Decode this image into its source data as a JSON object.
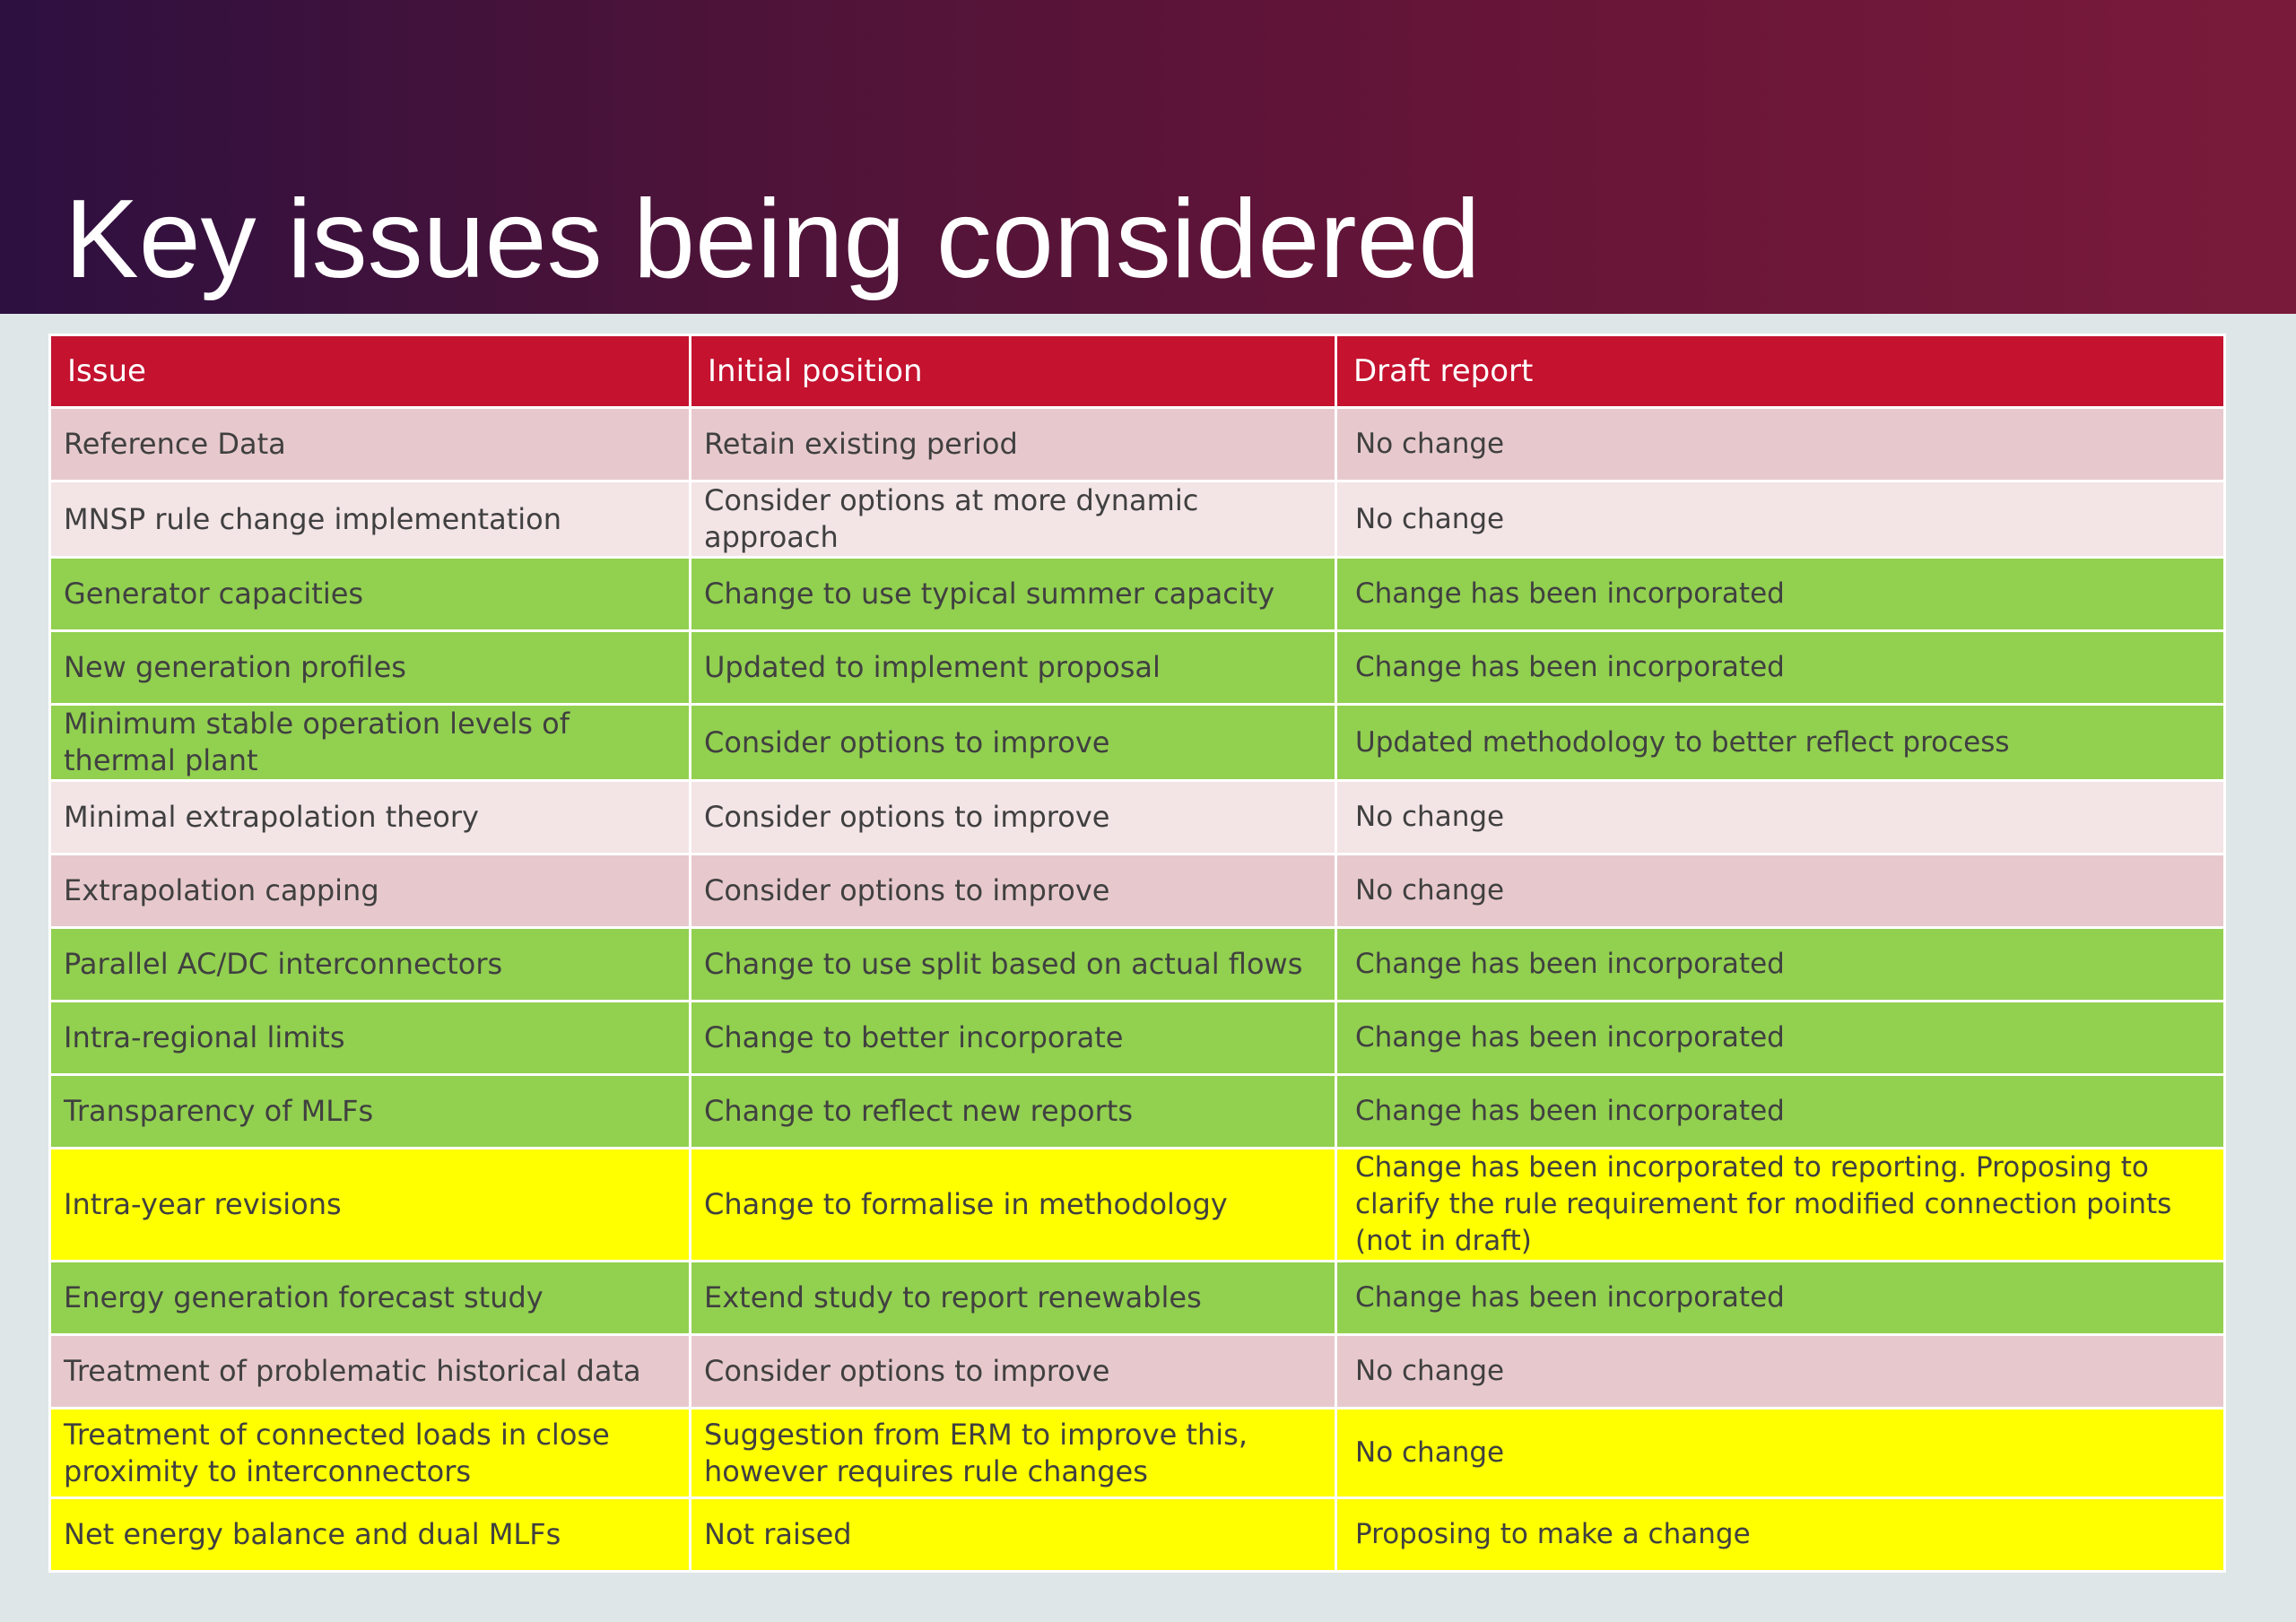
{
  "title": "Key issues being considered",
  "table": {
    "headers": {
      "issue": "Issue",
      "initial_position": "Initial position",
      "draft_report": "Draft report"
    },
    "rows": [
      {
        "issue": "Reference Data",
        "initial_position": "Retain existing period",
        "draft_report": "No change",
        "status_color": "#e7c9cd"
      },
      {
        "issue": "MNSP rule change implementation",
        "initial_position": "Consider options at more dynamic approach",
        "draft_report": "No change",
        "status_color": "#f3e4e6"
      },
      {
        "issue": "Generator capacities",
        "initial_position": "Change to use typical summer capacity",
        "draft_report": "Change has been incorporated",
        "status_color": "#92d050"
      },
      {
        "issue": "New generation profiles",
        "initial_position": "Updated to implement proposal",
        "draft_report": "Change has been incorporated",
        "status_color": "#92d050"
      },
      {
        "issue": "Minimum stable operation levels of thermal plant",
        "initial_position": "Consider options to improve",
        "draft_report": "Updated methodology to better reflect process",
        "status_color": "#92d050"
      },
      {
        "issue": "Minimal extrapolation theory",
        "initial_position": "Consider options to improve",
        "draft_report": "No change",
        "status_color": "#f3e4e6"
      },
      {
        "issue": "Extrapolation capping",
        "initial_position": "Consider options to improve",
        "draft_report": "No change",
        "status_color": "#e7c9cd"
      },
      {
        "issue": "Parallel AC/DC interconnectors",
        "initial_position": "Change to use split based on actual flows",
        "draft_report": "Change has been incorporated",
        "status_color": "#92d050"
      },
      {
        "issue": "Intra-regional limits",
        "initial_position": "Change to better incorporate",
        "draft_report": "Change has been incorporated",
        "status_color": "#92d050"
      },
      {
        "issue": "Transparency of MLFs",
        "initial_position": "Change to reflect new reports",
        "draft_report": "Change has been incorporated",
        "status_color": "#92d050"
      },
      {
        "issue": "Intra-year revisions",
        "initial_position": "Change to formalise in methodology",
        "draft_report": "Change has been incorporated to reporting. Proposing to clarify the rule requirement for modified connection points (not in draft)",
        "status_color": "#ffff00"
      },
      {
        "issue": "Energy generation forecast study",
        "initial_position": "Extend study to report renewables",
        "draft_report": "Change has been incorporated",
        "status_color": "#92d050"
      },
      {
        "issue": "Treatment of problematic historical data",
        "initial_position": "Consider options to improve",
        "draft_report": "No change",
        "status_color": "#e7c9cd"
      },
      {
        "issue": "Treatment of connected loads in close proximity to interconnectors",
        "initial_position": "Suggestion from ERM to improve this, however requires rule changes",
        "draft_report": "No change",
        "status_color": "#ffff00"
      },
      {
        "issue": "Net energy balance and dual MLFs",
        "initial_position": "Not raised",
        "draft_report": "Proposing to make a change",
        "status_color": "#ffff00"
      }
    ]
  }
}
